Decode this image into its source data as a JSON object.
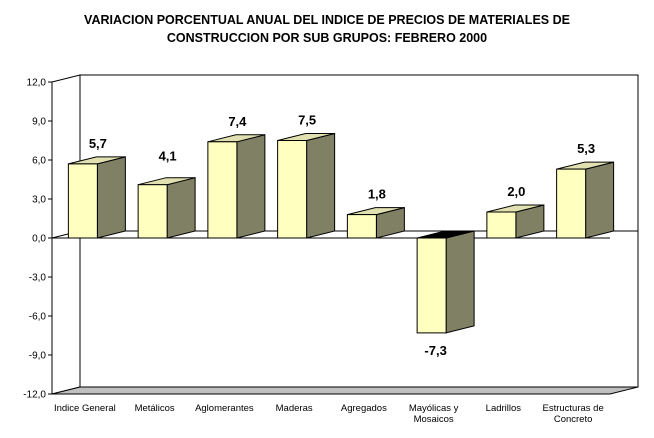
{
  "chart_data": {
    "type": "bar",
    "title_line1": "VARIACION PORCENTUAL ANUAL DEL INDICE DE PRECIOS DE MATERIALES DE",
    "title_line2": "CONSTRUCCION POR SUB GRUPOS: FEBRERO 2000",
    "categories": [
      [
        "Indice General"
      ],
      [
        "Metálicos"
      ],
      [
        "Aglomerantes"
      ],
      [
        "Maderas"
      ],
      [
        "Agregados"
      ],
      [
        "Mayólicas y",
        "Mosaicos"
      ],
      [
        "Ladrillos"
      ],
      [
        "Estructuras de",
        "Concreto"
      ]
    ],
    "values": [
      5.7,
      4.1,
      7.4,
      7.5,
      1.8,
      -7.3,
      2.0,
      5.3
    ],
    "data_labels": [
      "5,7",
      "4,1",
      "7,4",
      "7,5",
      "1,8",
      "-7,3",
      "2,0",
      "5,3"
    ],
    "ylim": [
      -12,
      12
    ],
    "yticks": [
      12,
      9,
      6,
      3,
      0,
      -3,
      -6,
      -9,
      -12
    ],
    "ytick_labels": [
      "12,0",
      "9,0",
      "6,0",
      "3,0",
      "0,0",
      "-3,0",
      "-6,0",
      "-9,0",
      "-12,0"
    ],
    "grid": false,
    "legend": "none",
    "colors": {
      "bar_front": "#FFFFC0",
      "bar_side": "#808064",
      "bar_top": "#E0E0B0",
      "neg_top": "#000000",
      "floor": "#C0C0C0",
      "wall": "#FFFFFF",
      "edge": "#000000"
    }
  }
}
